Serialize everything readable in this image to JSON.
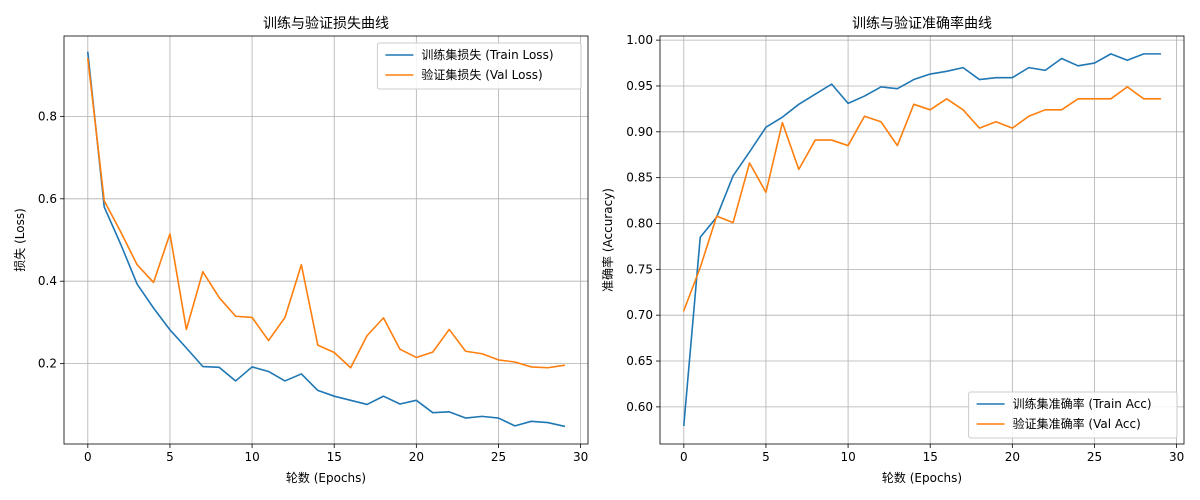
{
  "chart_data": [
    {
      "type": "line",
      "title": "训练与验证损失曲线",
      "xlabel": "轮数 (Epochs)",
      "ylabel": "损失 (Loss)",
      "xlim": [
        -1.45,
        30.45
      ],
      "ylim": [
        0.005,
        0.995
      ],
      "xticks": [
        0,
        5,
        10,
        15,
        20,
        25,
        30
      ],
      "xtick_labels": [
        "0",
        "5",
        "10",
        "15",
        "20",
        "25",
        "30"
      ],
      "yticks": [
        0.2,
        0.4,
        0.6,
        0.8
      ],
      "ytick_labels": [
        "0.2",
        "0.4",
        "0.6",
        "0.8"
      ],
      "grid": true,
      "legend_position": "top-right",
      "x": [
        0,
        1,
        2,
        3,
        4,
        5,
        6,
        7,
        8,
        9,
        10,
        11,
        12,
        13,
        14,
        15,
        16,
        17,
        18,
        19,
        20,
        21,
        22,
        23,
        24,
        25,
        26,
        27,
        28,
        29
      ],
      "series": [
        {
          "name": "训练集损失 (Train Loss)",
          "color": "#1f77b4",
          "values": [
            0.955,
            0.58,
            0.49,
            0.393,
            0.335,
            0.282,
            0.238,
            0.193,
            0.191,
            0.158,
            0.192,
            0.181,
            0.158,
            0.175,
            0.135,
            0.121,
            0.111,
            0.101,
            0.121,
            0.102,
            0.111,
            0.081,
            0.083,
            0.068,
            0.072,
            0.068,
            0.049,
            0.06,
            0.057,
            0.048
          ]
        },
        {
          "name": "验证集损失 (Val Loss)",
          "color": "#ff7f0e",
          "values": [
            0.94,
            0.595,
            0.52,
            0.44,
            0.397,
            0.515,
            0.283,
            0.423,
            0.36,
            0.315,
            0.312,
            0.256,
            0.312,
            0.44,
            0.245,
            0.227,
            0.19,
            0.268,
            0.311,
            0.235,
            0.215,
            0.228,
            0.283,
            0.23,
            0.224,
            0.209,
            0.204,
            0.192,
            0.19,
            0.196
          ]
        }
      ]
    },
    {
      "type": "line",
      "title": "训练与验证准确率曲线",
      "xlabel": "轮数 (Epochs)",
      "ylabel": "准确率 (Accuracy)",
      "xlim": [
        -1.45,
        30.45
      ],
      "ylim": [
        0.5595,
        1.0045
      ],
      "xticks": [
        0,
        5,
        10,
        15,
        20,
        25,
        30
      ],
      "xtick_labels": [
        "0",
        "5",
        "10",
        "15",
        "20",
        "25",
        "30"
      ],
      "yticks": [
        0.6,
        0.65,
        0.7,
        0.75,
        0.8,
        0.85,
        0.9,
        0.95,
        1.0
      ],
      "ytick_labels": [
        "0.60",
        "0.65",
        "0.70",
        "0.75",
        "0.80",
        "0.85",
        "0.90",
        "0.95",
        "1.00"
      ],
      "grid": true,
      "legend_position": "bottom-right",
      "x": [
        0,
        1,
        2,
        3,
        4,
        5,
        6,
        7,
        8,
        9,
        10,
        11,
        12,
        13,
        14,
        15,
        16,
        17,
        18,
        19,
        20,
        21,
        22,
        23,
        24,
        25,
        26,
        27,
        28,
        29
      ],
      "series": [
        {
          "name": "训练集准确率 (Train Acc)",
          "color": "#1f77b4",
          "values": [
            0.58,
            0.785,
            0.807,
            0.852,
            0.878,
            0.905,
            0.916,
            0.93,
            0.941,
            0.952,
            0.931,
            0.939,
            0.949,
            0.947,
            0.957,
            0.963,
            0.966,
            0.97,
            0.957,
            0.959,
            0.959,
            0.97,
            0.967,
            0.98,
            0.972,
            0.975,
            0.985,
            0.978,
            0.985,
            0.985
          ]
        },
        {
          "name": "验证集准确率 (Val Acc)",
          "color": "#ff7f0e",
          "values": [
            0.705,
            0.752,
            0.808,
            0.801,
            0.866,
            0.834,
            0.91,
            0.859,
            0.891,
            0.891,
            0.885,
            0.917,
            0.911,
            0.885,
            0.93,
            0.924,
            0.936,
            0.924,
            0.904,
            0.911,
            0.904,
            0.917,
            0.924,
            0.924,
            0.936,
            0.936,
            0.936,
            0.949,
            0.936,
            0.936
          ]
        }
      ]
    }
  ]
}
